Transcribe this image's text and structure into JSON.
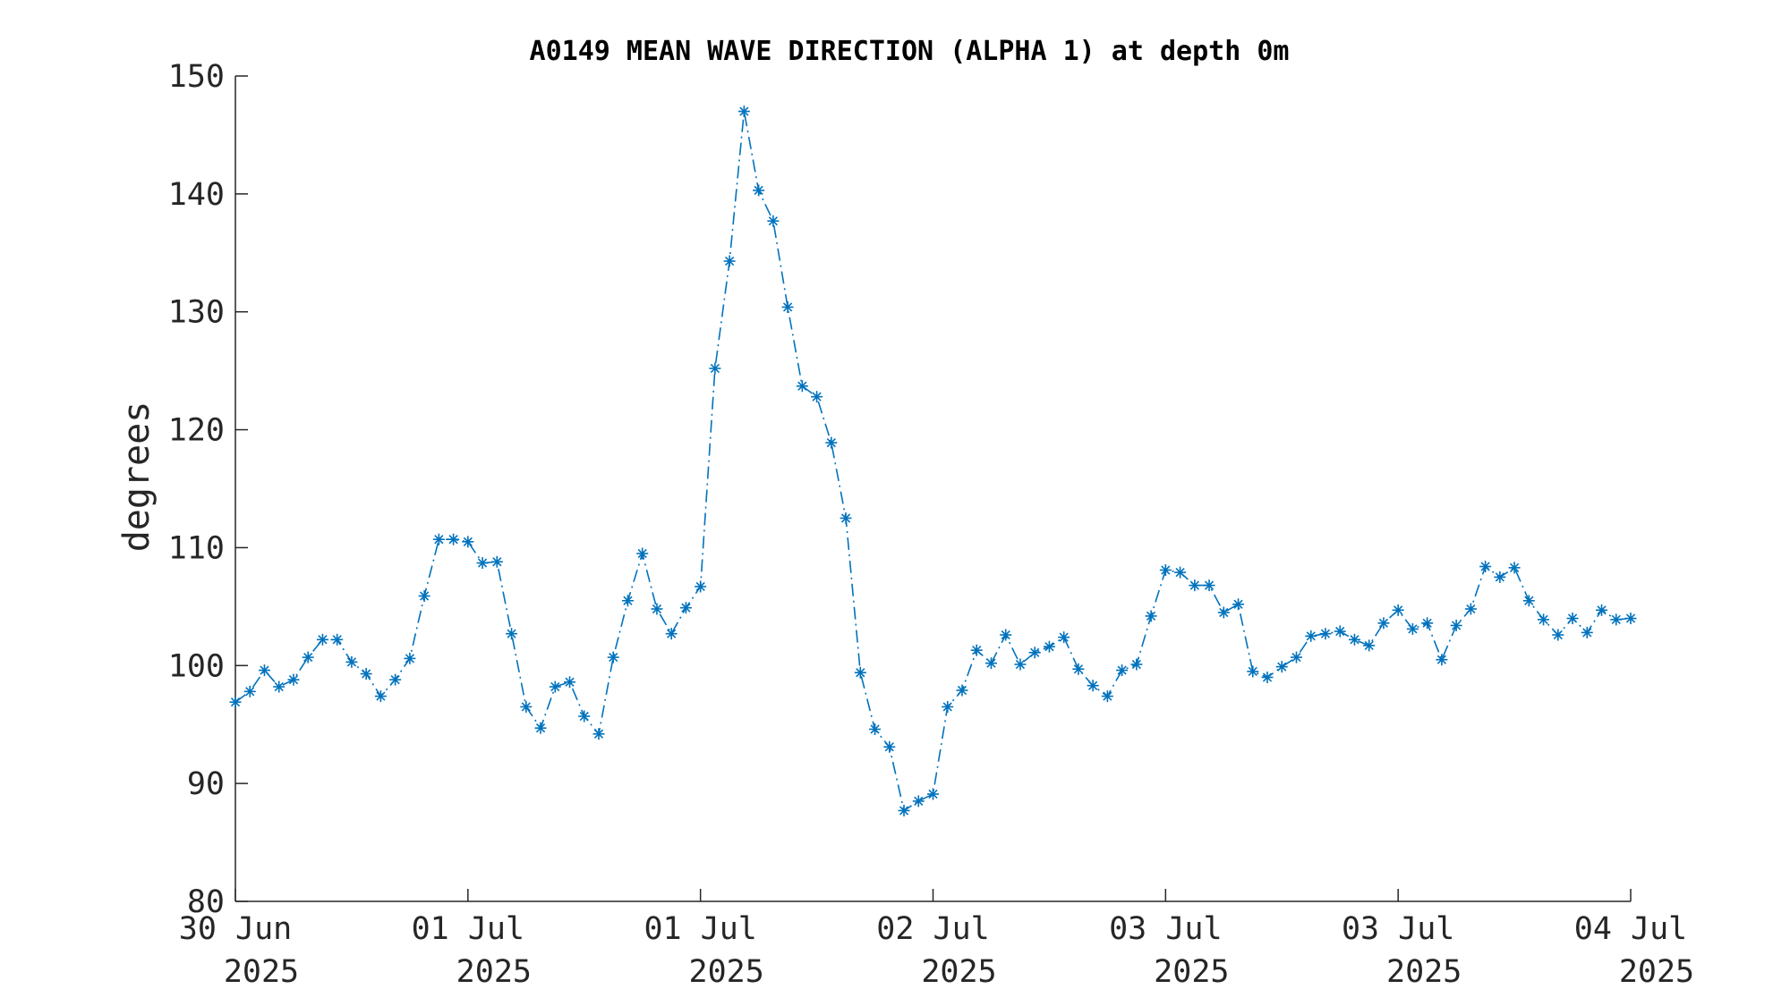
{
  "chart_data": {
    "type": "line",
    "title": "A0149 MEAN WAVE DIRECTION (ALPHA 1) at depth 0m",
    "xlabel": "",
    "ylabel": "degrees",
    "ylim": [
      80,
      150
    ],
    "yticks": [
      80,
      90,
      100,
      110,
      120,
      130,
      140,
      150
    ],
    "xlim_hours": [
      0,
      96
    ],
    "xticks": [
      {
        "hours": 0,
        "line1": "30 Jun",
        "line2": "2025"
      },
      {
        "hours": 16,
        "line1": "01 Jul",
        "line2": "2025"
      },
      {
        "hours": 32,
        "line1": "01 Jul",
        "line2": "2025"
      },
      {
        "hours": 48,
        "line1": "02 Jul",
        "line2": "2025"
      },
      {
        "hours": 64,
        "line1": "03 Jul",
        "line2": "2025"
      },
      {
        "hours": 80,
        "line1": "03 Jul",
        "line2": "2025"
      },
      {
        "hours": 96,
        "line1": "04 Jul",
        "line2": "2025"
      }
    ],
    "series": [
      {
        "color": "#0072BD",
        "marker": "asterisk",
        "line_style": "dash-dot",
        "x_hours": [
          0,
          1,
          2,
          3,
          4,
          5,
          6,
          7,
          8,
          9,
          10,
          11,
          12,
          13,
          14,
          15,
          16,
          17,
          18,
          19,
          20,
          21,
          22,
          23,
          24,
          25,
          26,
          27,
          28,
          29,
          30,
          31,
          32,
          33,
          34,
          35,
          36,
          37,
          38,
          39,
          40,
          41,
          42,
          43,
          44,
          45,
          46,
          47,
          48,
          49,
          50,
          51,
          52,
          53,
          54,
          55,
          56,
          57,
          58,
          59,
          60,
          61,
          62,
          63,
          64,
          65,
          66,
          67,
          68,
          69,
          70,
          71,
          72,
          73,
          74,
          75,
          76,
          77,
          78,
          79,
          80,
          81,
          82,
          83,
          84,
          85,
          86,
          87,
          88,
          89,
          90,
          91,
          92,
          93,
          94,
          95,
          96
        ],
        "values": [
          96.9,
          97.8,
          99.6,
          98.2,
          98.8,
          100.7,
          102.2,
          102.2,
          100.3,
          99.3,
          97.4,
          98.8,
          100.6,
          105.9,
          110.7,
          110.7,
          110.5,
          108.7,
          108.8,
          102.7,
          96.5,
          94.7,
          98.2,
          98.6,
          95.7,
          94.2,
          100.7,
          105.5,
          109.5,
          104.8,
          102.7,
          104.9,
          106.7,
          125.2,
          134.3,
          147.0,
          140.3,
          137.7,
          130.4,
          123.7,
          122.8,
          118.9,
          112.5,
          99.4,
          94.6,
          93.1,
          87.7,
          88.5,
          89.1,
          96.5,
          97.9,
          101.3,
          100.2,
          102.6,
          100.1,
          101.1,
          101.6,
          102.4,
          99.7,
          98.3,
          97.4,
          99.6,
          100.1,
          104.2,
          108.1,
          107.9,
          106.8,
          106.8,
          104.5,
          105.2,
          99.5,
          99.0,
          99.9,
          100.7,
          102.5,
          102.7,
          102.9,
          102.2,
          101.7,
          103.6,
          104.7,
          103.1,
          103.6,
          100.5,
          103.4,
          104.8,
          108.4,
          107.5,
          108.3,
          105.5,
          103.9,
          102.6,
          104.0,
          102.8,
          104.7,
          103.9,
          104.0
        ]
      }
    ]
  }
}
